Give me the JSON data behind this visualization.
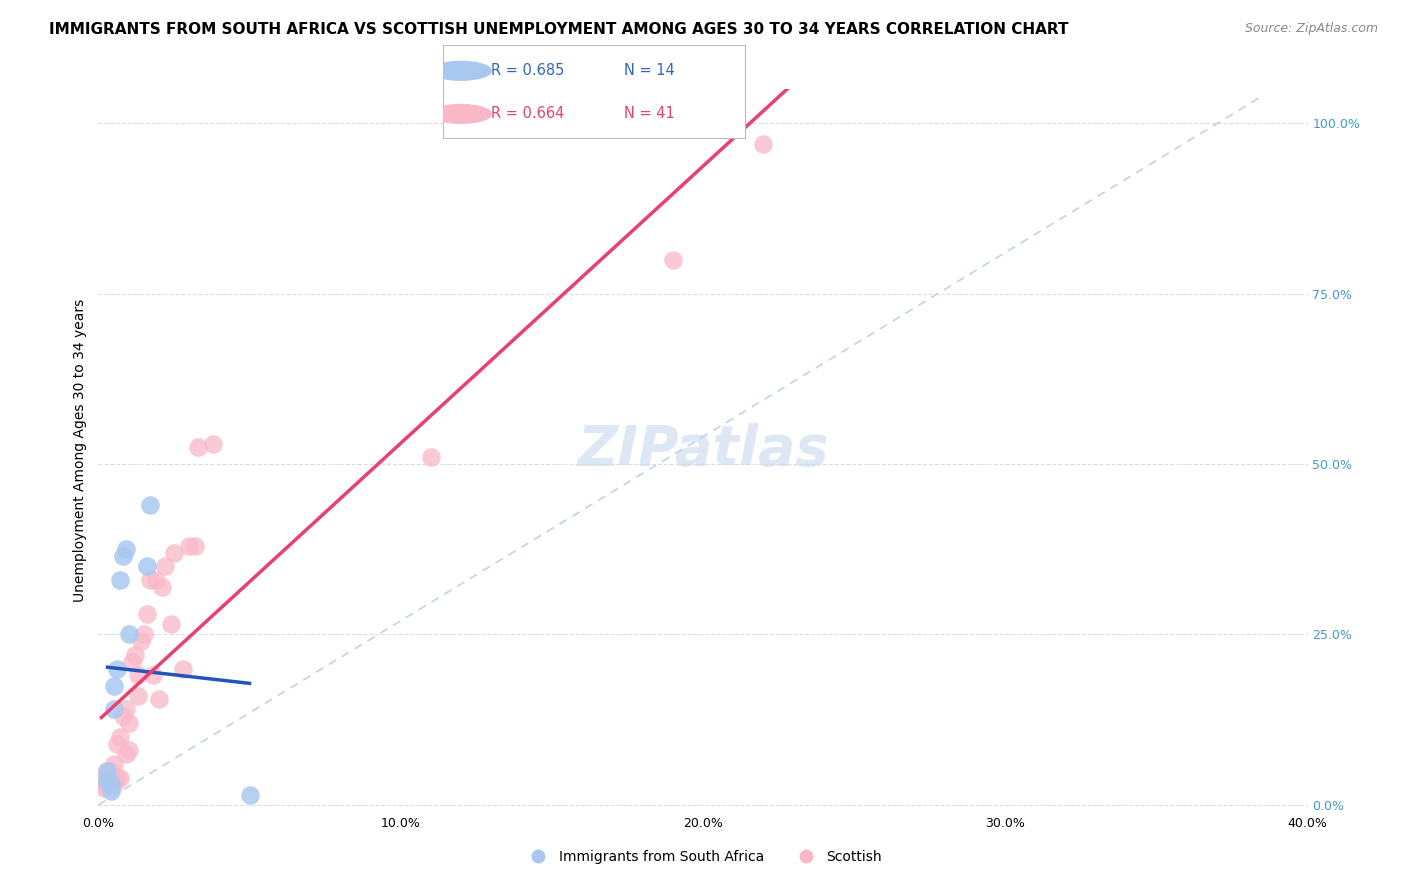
{
  "title": "IMMIGRANTS FROM SOUTH AFRICA VS SCOTTISH UNEMPLOYMENT AMONG AGES 30 TO 34 YEARS CORRELATION CHART",
  "source": "Source: ZipAtlas.com",
  "ylabel": "Unemployment Among Ages 30 to 34 years",
  "yaxis_ticks": [
    "0.0%",
    "25.0%",
    "50.0%",
    "75.0%",
    "100.0%"
  ],
  "yaxis_tick_values": [
    0.0,
    0.25,
    0.5,
    0.75,
    1.0
  ],
  "xaxis_ticks": [
    "0.0%",
    "10.0%",
    "20.0%",
    "30.0%",
    "40.0%"
  ],
  "xaxis_tick_values": [
    0.0,
    0.1,
    0.2,
    0.3,
    0.4
  ],
  "xlim": [
    0.0,
    0.4
  ],
  "ylim": [
    -0.01,
    1.05
  ],
  "watermark": "ZIPatlas",
  "blue_R": 0.685,
  "blue_N": 14,
  "pink_R": 0.664,
  "pink_N": 41,
  "blue_points_x": [
    0.003,
    0.003,
    0.004,
    0.004,
    0.005,
    0.005,
    0.006,
    0.007,
    0.008,
    0.009,
    0.01,
    0.016,
    0.017,
    0.05
  ],
  "blue_points_y": [
    0.035,
    0.05,
    0.02,
    0.03,
    0.14,
    0.175,
    0.2,
    0.33,
    0.365,
    0.375,
    0.25,
    0.35,
    0.44,
    0.015
  ],
  "pink_points_x": [
    0.001,
    0.002,
    0.002,
    0.003,
    0.003,
    0.004,
    0.004,
    0.005,
    0.005,
    0.006,
    0.006,
    0.007,
    0.007,
    0.008,
    0.009,
    0.009,
    0.01,
    0.01,
    0.011,
    0.012,
    0.013,
    0.013,
    0.014,
    0.015,
    0.016,
    0.017,
    0.018,
    0.019,
    0.02,
    0.021,
    0.022,
    0.024,
    0.025,
    0.028,
    0.03,
    0.032,
    0.033,
    0.038,
    0.11,
    0.19,
    0.22
  ],
  "pink_points_y": [
    0.03,
    0.025,
    0.04,
    0.03,
    0.05,
    0.04,
    0.05,
    0.03,
    0.06,
    0.04,
    0.09,
    0.04,
    0.1,
    0.13,
    0.14,
    0.075,
    0.08,
    0.12,
    0.21,
    0.22,
    0.19,
    0.16,
    0.24,
    0.25,
    0.28,
    0.33,
    0.19,
    0.33,
    0.155,
    0.32,
    0.35,
    0.265,
    0.37,
    0.2,
    0.38,
    0.38,
    0.525,
    0.53,
    0.51,
    0.8,
    0.97
  ],
  "blue_color": "#a8c8f0",
  "blue_line_color": "#2255bb",
  "pink_color": "#f8b8c8",
  "pink_line_color": "#e84070",
  "dashed_line_color": "#b0c8e0",
  "legend_blue_label": "Immigrants from South Africa",
  "legend_pink_label": "Scottish",
  "title_fontsize": 11,
  "source_fontsize": 9,
  "tick_fontsize": 9,
  "legend_fontsize": 10,
  "ylabel_fontsize": 10,
  "watermark_fontsize": 40,
  "watermark_color": "#c8d8ee",
  "watermark_alpha": 0.6
}
